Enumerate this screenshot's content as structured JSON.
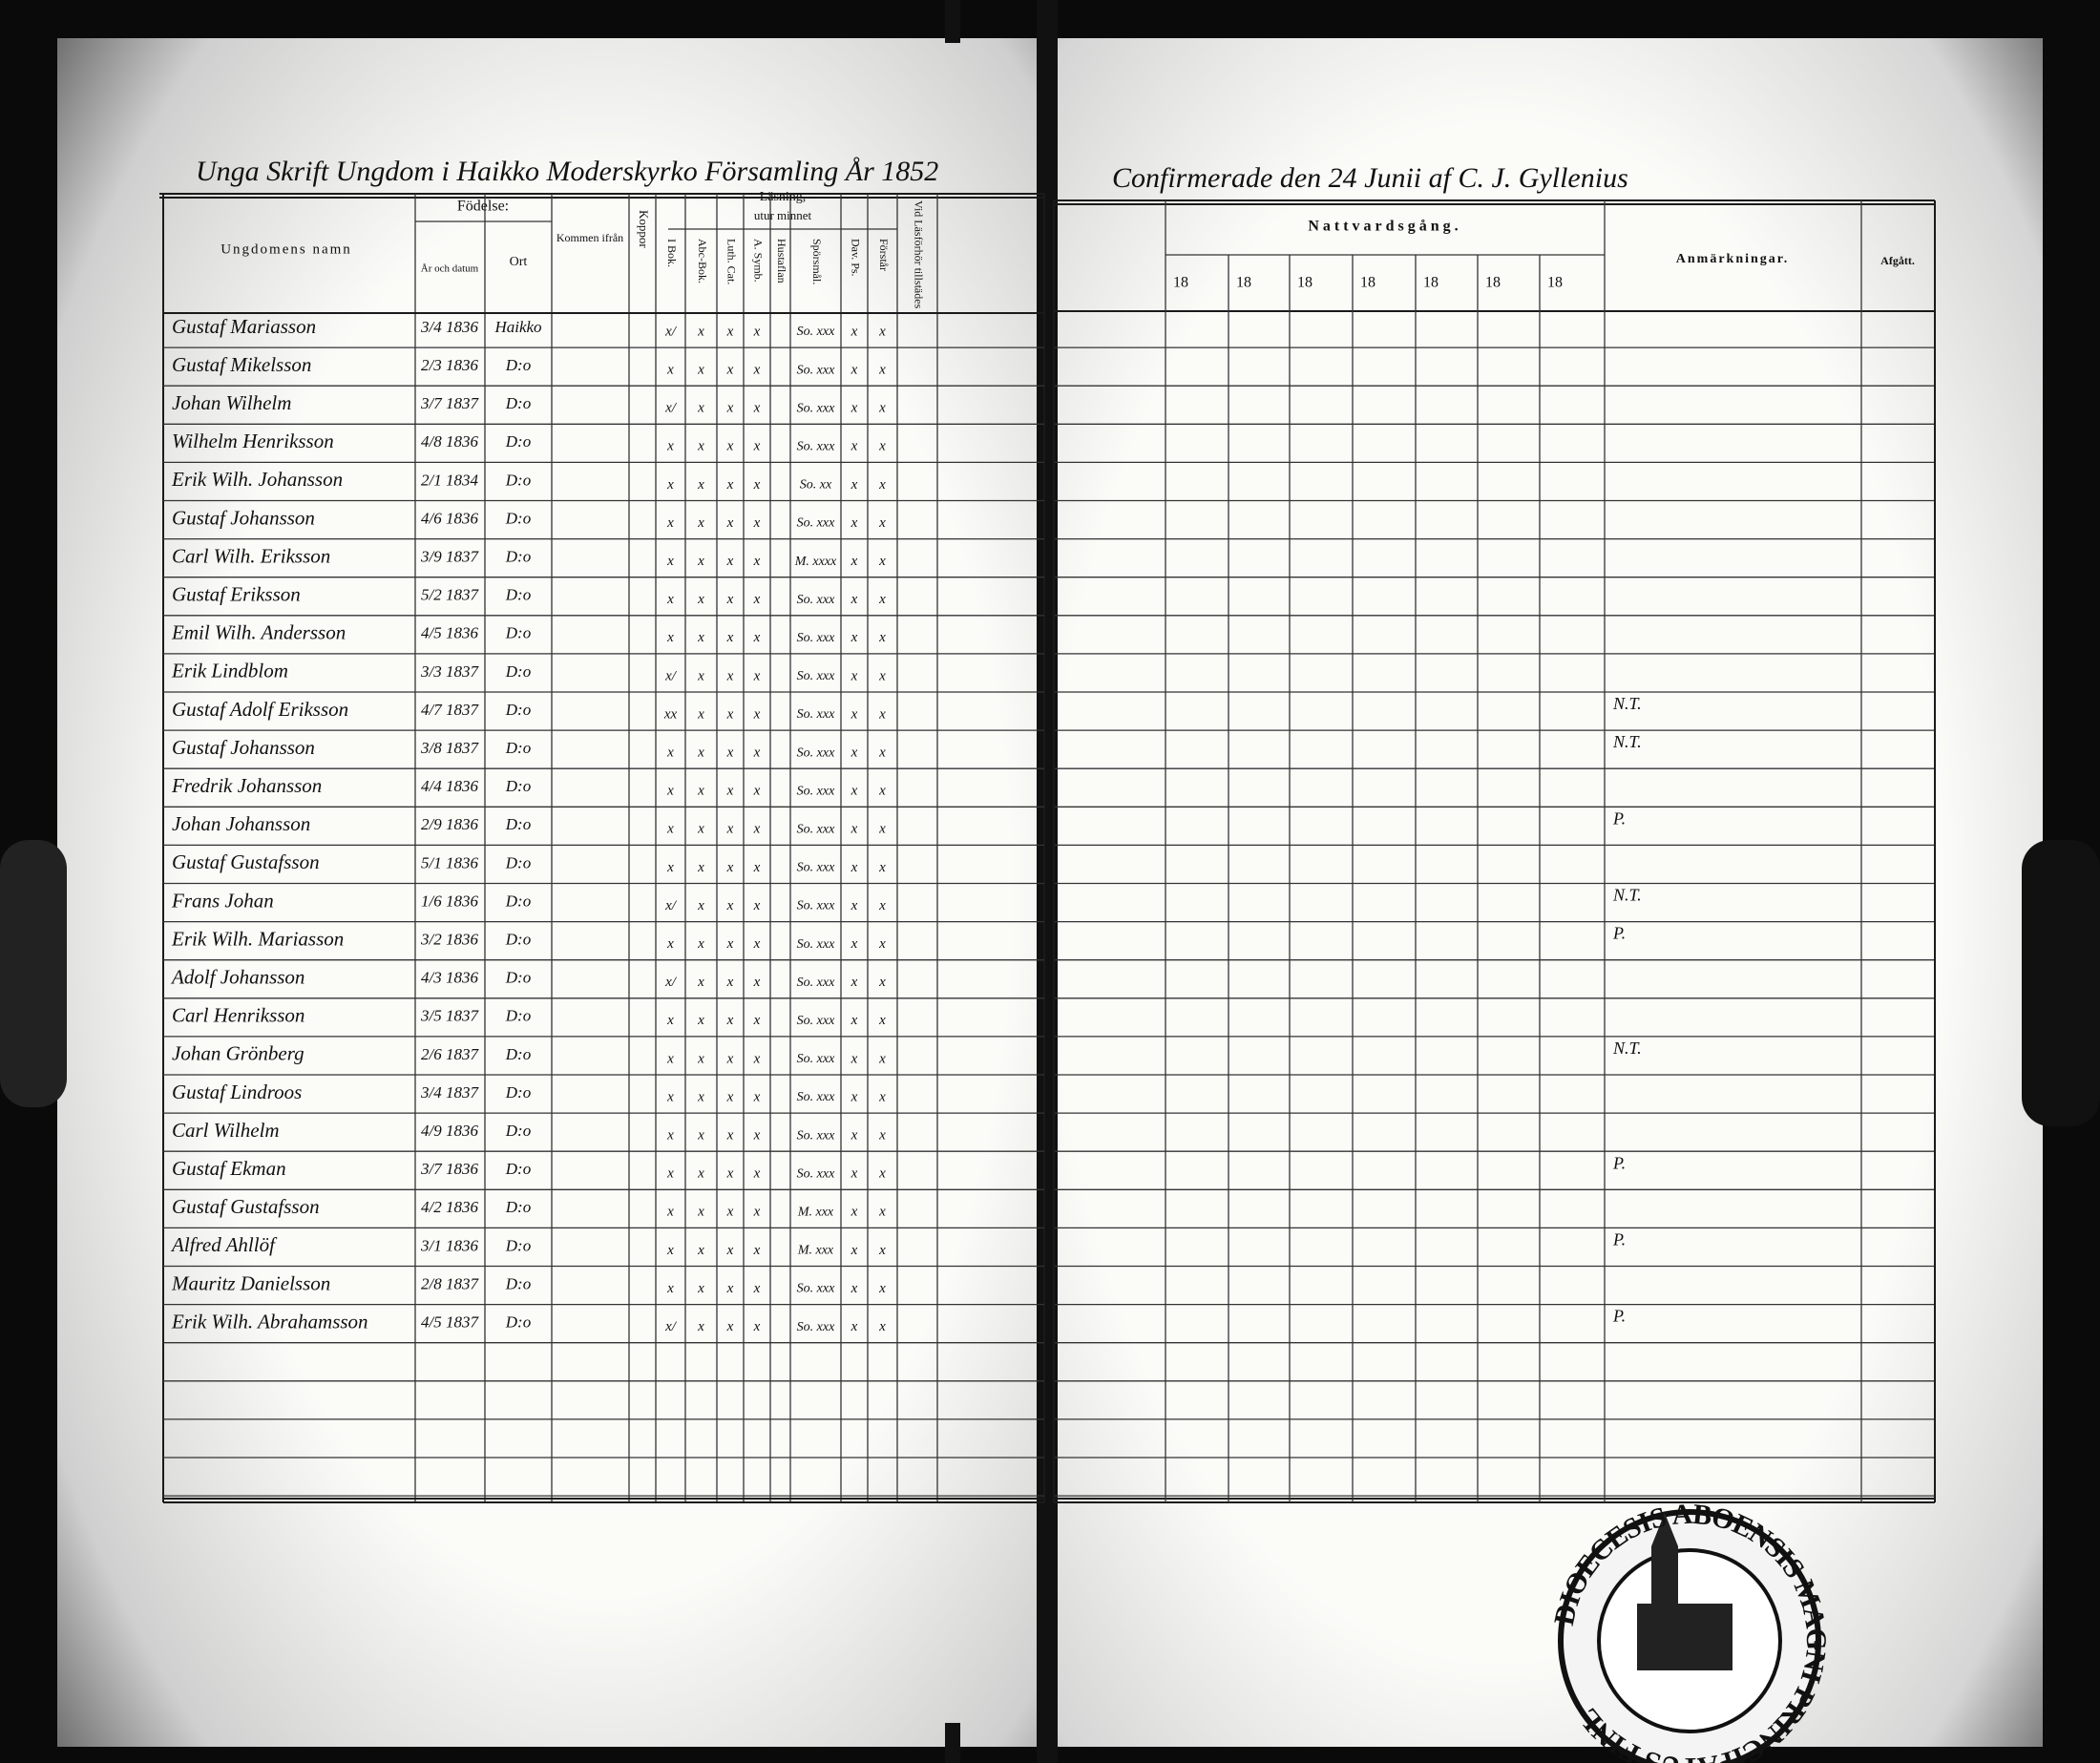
{
  "left_page": {
    "heading": "Unga Skrift Ungdom i Haikko Moderskyrko Församling År 1852",
    "header": {
      "name": "Ungdomens namn",
      "birth": "Födelse:",
      "born": "År och datum",
      "place": "Ort",
      "from": "Kommen ifrån",
      "pox": "Koppor",
      "reading": "Läsning,",
      "by_heart": "utur minnet",
      "marks": [
        "I Bok.",
        "Abc-Bok.",
        "Luth. Cat.",
        "A. Symb.",
        "Hustaflan",
        "Spörsmål.",
        "Dav. Ps.",
        "Förstår",
        "Vid Läsförhör tillstädes"
      ]
    },
    "rows": [
      {
        "name": "Gustaf Mariasson",
        "born": "3/4 1836",
        "place": "Haikko",
        "marks": [
          "x/",
          "x",
          "x",
          "x",
          null,
          "So. xxx",
          "x",
          "x",
          null
        ]
      },
      {
        "name": "Gustaf Mikelsson",
        "born": "2/3 1836",
        "place": "D:o",
        "marks": [
          "x",
          "x",
          "x",
          "x",
          null,
          "So. xxx",
          "x",
          "x",
          null
        ]
      },
      {
        "name": "Johan Wilhelm",
        "born": "3/7 1837",
        "place": "D:o",
        "marks": [
          "x/",
          "x",
          "x",
          "x",
          null,
          "So. xxx",
          "x",
          "x",
          null
        ]
      },
      {
        "name": "Wilhelm Henriksson",
        "born": "4/8 1836",
        "place": "D:o",
        "marks": [
          "x",
          "x",
          "x",
          "x",
          null,
          "So. xxx",
          "x",
          "x",
          null
        ]
      },
      {
        "name": "Erik Wilh. Johansson",
        "born": "2/1 1834",
        "place": "D:o",
        "marks": [
          "x",
          "x",
          "x",
          "x",
          null,
          "So. xx",
          "x",
          "x",
          null
        ]
      },
      {
        "name": "Gustaf Johansson",
        "born": "4/6 1836",
        "place": "D:o",
        "marks": [
          "x",
          "x",
          "x",
          "x",
          null,
          "So. xxx",
          "x",
          "x",
          null
        ]
      },
      {
        "name": "Carl Wilh. Eriksson",
        "born": "3/9 1837",
        "place": "D:o",
        "marks": [
          "x",
          "x",
          "x",
          "x",
          null,
          "M. xxxx",
          "x",
          "x",
          null
        ]
      },
      {
        "name": "Gustaf Eriksson",
        "born": "5/2 1837",
        "place": "D:o",
        "marks": [
          "x",
          "x",
          "x",
          "x",
          null,
          "So. xxx",
          "x",
          "x",
          null
        ]
      },
      {
        "name": "Emil Wilh. Andersson",
        "born": "4/5 1836",
        "place": "D:o",
        "marks": [
          "x",
          "x",
          "x",
          "x",
          null,
          "So. xxx",
          "x",
          "x",
          null
        ]
      },
      {
        "name": "Erik Lindblom",
        "born": "3/3 1837",
        "place": "D:o",
        "marks": [
          "x/",
          "x",
          "x",
          "x",
          null,
          "So. xxx",
          "x",
          "x",
          null
        ]
      },
      {
        "name": "Gustaf Adolf Eriksson",
        "born": "4/7 1837",
        "place": "D:o",
        "marks": [
          "xx",
          "x",
          "x",
          "x",
          null,
          "So. xxx",
          "x",
          "x",
          null
        ],
        "note": "N.T."
      },
      {
        "name": "Gustaf Johansson",
        "born": "3/8 1837",
        "place": "D:o",
        "marks": [
          "x",
          "x",
          "x",
          "x",
          null,
          "So. xxx",
          "x",
          "x",
          null
        ],
        "note": "N.T."
      },
      {
        "name": "Fredrik Johansson",
        "born": "4/4 1836",
        "place": "D:o",
        "marks": [
          "x",
          "x",
          "x",
          "x",
          null,
          "So. xxx",
          "x",
          "x",
          null
        ]
      },
      {
        "name": "Johan Johansson",
        "born": "2/9 1836",
        "place": "D:o",
        "marks": [
          "x",
          "x",
          "x",
          "x",
          null,
          "So. xxx",
          "x",
          "x",
          null
        ],
        "note": "P."
      },
      {
        "name": "Gustaf Gustafsson",
        "born": "5/1 1836",
        "place": "D:o",
        "marks": [
          "x",
          "x",
          "x",
          "x",
          null,
          "So. xxx",
          "x",
          "x",
          null
        ]
      },
      {
        "name": "Frans Johan",
        "born": "1/6 1836",
        "place": "D:o",
        "marks": [
          "x/",
          "x",
          "x",
          "x",
          null,
          "So. xxx",
          "x",
          "x",
          null
        ],
        "note": "N.T."
      },
      {
        "name": "Erik Wilh. Mariasson",
        "born": "3/2 1836",
        "place": "D:o",
        "marks": [
          "x",
          "x",
          "x",
          "x",
          null,
          "So. xxx",
          "x",
          "x",
          null
        ],
        "note": "P."
      },
      {
        "name": "Adolf Johansson",
        "born": "4/3 1836",
        "place": "D:o",
        "marks": [
          "x/",
          "x",
          "x",
          "x",
          null,
          "So. xxx",
          "x",
          "x",
          null
        ]
      },
      {
        "name": "Carl Henriksson",
        "born": "3/5 1837",
        "place": "D:o",
        "marks": [
          "x",
          "x",
          "x",
          "x",
          null,
          "So. xxx",
          "x",
          "x",
          null
        ]
      },
      {
        "name": "Johan Grönberg",
        "born": "2/6 1837",
        "place": "D:o",
        "marks": [
          "x",
          "x",
          "x",
          "x",
          null,
          "So. xxx",
          "x",
          "x",
          null
        ],
        "note": "N.T."
      },
      {
        "name": "Gustaf Lindroos",
        "born": "3/4 1837",
        "place": "D:o",
        "marks": [
          "x",
          "x",
          "x",
          "x",
          null,
          "So. xxx",
          "x",
          "x",
          null
        ]
      },
      {
        "name": "Carl Wilhelm",
        "born": "4/9 1836",
        "place": "D:o",
        "marks": [
          "x",
          "x",
          "x",
          "x",
          null,
          "So. xxx",
          "x",
          "x",
          null
        ]
      },
      {
        "name": "Gustaf Ekman",
        "born": "3/7 1836",
        "place": "D:o",
        "marks": [
          "x",
          "x",
          "x",
          "x",
          null,
          "So. xxx",
          "x",
          "x",
          null
        ],
        "note": "P."
      },
      {
        "name": "Gustaf Gustafsson",
        "born": "4/2 1836",
        "place": "D:o",
        "marks": [
          "x",
          "x",
          "x",
          "x",
          null,
          "M. xxx",
          "x",
          "x",
          null
        ]
      },
      {
        "name": "Alfred Ahllöf",
        "born": "3/1 1836",
        "place": "D:o",
        "marks": [
          "x",
          "x",
          "x",
          "x",
          null,
          "M. xxx",
          "x",
          "x",
          null
        ],
        "note": "P."
      },
      {
        "name": "Mauritz Danielsson",
        "born": "2/8 1837",
        "place": "D:o",
        "marks": [
          "x",
          "x",
          "x",
          "x",
          null,
          "So. xxx",
          "x",
          "x",
          null
        ]
      },
      {
        "name": "Erik Wilh. Abrahamsson",
        "born": "4/5 1837",
        "place": "D:o",
        "marks": [
          "x/",
          "x",
          "x",
          "x",
          null,
          "So. xxx",
          "x",
          "x",
          null
        ],
        "note": "P."
      }
    ]
  },
  "right_page": {
    "heading": "Confirmerade den 24 Junii af C. J. Gyllenius",
    "header": {
      "communion": "Nattvardsgång.",
      "years": [
        "18",
        "18",
        "18",
        "18",
        "18",
        "18",
        "18"
      ],
      "remarks": "Anmärkningar.",
      "left": "Afgått."
    }
  },
  "stamp": {
    "ring": "DIOECESIS ABOENSIS MAGNI PRINCIPATUS FINL"
  }
}
